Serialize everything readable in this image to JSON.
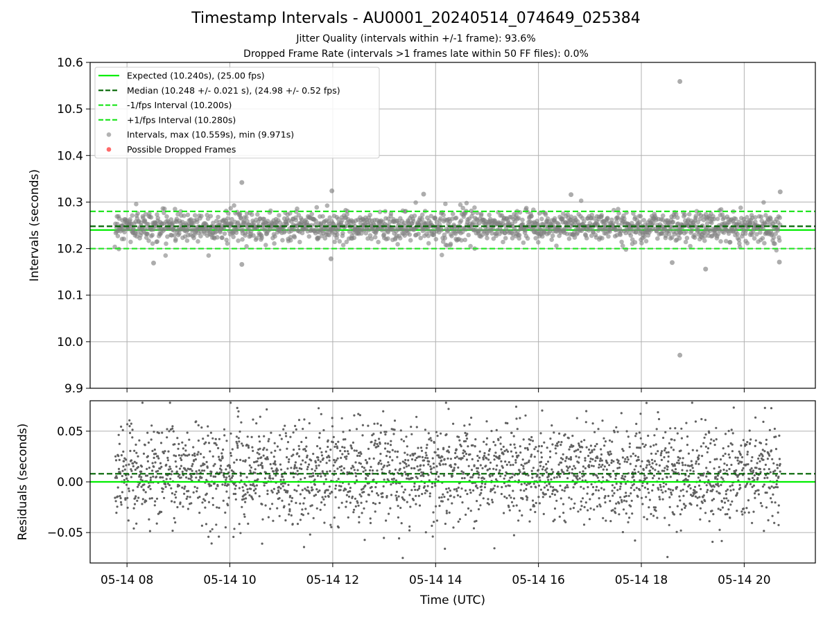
{
  "figure": {
    "title": "Timestamp Intervals - AU0001_20240514_074649_025384",
    "subtitle_1": "Jitter Quality (intervals within +/-1 frame): 93.6%",
    "subtitle_2": "Dropped Frame Rate (intervals >1 frames late within 50 FF files): 0.0%"
  },
  "colors": {
    "expected": "#00ee00",
    "median": "#006400",
    "fps_bounds": "#22e522",
    "points": "#808080",
    "dropped": "#ff4444",
    "grid": "#b0b0b0"
  },
  "chart_data": [
    {
      "type": "scatter",
      "panel": "top",
      "xlabel": "",
      "ylabel": "Intervals (seconds)",
      "ylim": [
        9.9,
        10.6
      ],
      "yticks": [
        9.9,
        10.0,
        10.1,
        10.2,
        10.3,
        10.4,
        10.5,
        10.6
      ],
      "ytick_labels": [
        "9.9",
        "10.0",
        "10.1",
        "10.2",
        "10.3",
        "10.4",
        "10.5",
        "10.6"
      ],
      "xlim": [
        "2024-05-14 07:17",
        "2024-05-14 21:23"
      ],
      "x_range": [
        "2024-05-14 07:46",
        "2024-05-14 20:42"
      ],
      "grid": true,
      "legend_position": "upper-left",
      "reference_lines": [
        {
          "name": "Expected (10.240s), (25.00 fps)",
          "y": 10.24,
          "style": "solid",
          "color": "#00ee00"
        },
        {
          "name": "Median (10.248 +/- 0.021 s), (24.98 +/- 0.52 fps)",
          "y": 10.248,
          "style": "dashed",
          "color": "#006400"
        },
        {
          "name": "-1/fps Interval (10.200s)",
          "y": 10.2,
          "style": "dashed",
          "color": "#22e522"
        },
        {
          "name": "+1/fps Interval (10.280s)",
          "y": 10.28,
          "style": "dashed",
          "color": "#22e522"
        }
      ],
      "series": [
        {
          "name": "Intervals, max (10.559s), min (9.971s)",
          "marker": "circle",
          "color": "#808080",
          "summary": {
            "count_approx": 4500,
            "mean": 10.248,
            "std": 0.021,
            "max": 10.559,
            "min": 9.971
          },
          "outliers": [
            {
              "x": "2024-05-14 18:45",
              "y": 10.559
            },
            {
              "x": "2024-05-14 18:45",
              "y": 9.971
            },
            {
              "x": "2024-05-14 10:14",
              "y": 10.342
            },
            {
              "x": "2024-05-14 11:59",
              "y": 10.324
            },
            {
              "x": "2024-05-14 13:46",
              "y": 10.317
            },
            {
              "x": "2024-05-14 16:38",
              "y": 10.316
            },
            {
              "x": "2024-05-14 20:42",
              "y": 10.322
            },
            {
              "x": "2024-05-14 19:15",
              "y": 10.156
            },
            {
              "x": "2024-05-14 08:31",
              "y": 10.169
            },
            {
              "x": "2024-05-14 10:14",
              "y": 10.166
            },
            {
              "x": "2024-05-14 20:41",
              "y": 10.171
            },
            {
              "x": "2024-05-14 18:36",
              "y": 10.17
            },
            {
              "x": "2024-05-14 11:58",
              "y": 10.178
            }
          ]
        },
        {
          "name": "Possible Dropped Frames",
          "marker": "circle",
          "color": "#ff4444",
          "points": []
        }
      ]
    },
    {
      "type": "scatter",
      "panel": "bottom",
      "xlabel": "Time (UTC)",
      "ylabel": "Residuals (seconds)",
      "ylim": [
        -0.08,
        0.08
      ],
      "yticks": [
        -0.05,
        0.0,
        0.05
      ],
      "ytick_labels": [
        "−0.05",
        "0.00",
        "0.05"
      ],
      "xticks": [
        "2024-05-14 08:00",
        "2024-05-14 10:00",
        "2024-05-14 12:00",
        "2024-05-14 14:00",
        "2024-05-14 16:00",
        "2024-05-14 18:00",
        "2024-05-14 20:00"
      ],
      "xtick_labels": [
        "05-14 08",
        "05-14 10",
        "05-14 12",
        "05-14 14",
        "05-14 16",
        "05-14 18",
        "05-14 20"
      ],
      "grid": true,
      "reference_lines": [
        {
          "y": 0.0,
          "style": "solid",
          "color": "#00ee00"
        },
        {
          "y": 0.008,
          "style": "dashed",
          "color": "#006400"
        }
      ],
      "series": [
        {
          "name": "Residuals",
          "marker": "point",
          "color": "#606060",
          "summary": {
            "count_approx": 3000,
            "mean": 0.008,
            "std": 0.024,
            "max": 0.078,
            "min": -0.075
          }
        }
      ]
    }
  ]
}
